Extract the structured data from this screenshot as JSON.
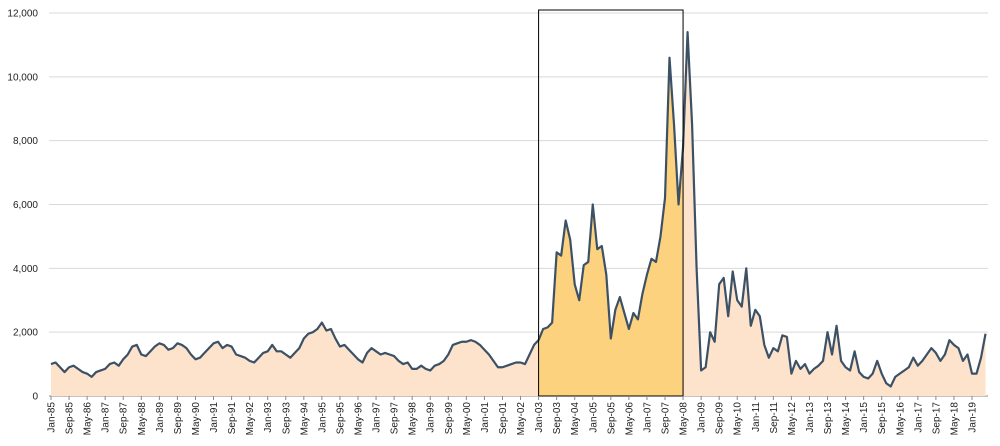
{
  "chart_data": {
    "type": "area",
    "categories": [
      "Jan-85",
      null,
      null,
      null,
      "Sep-85",
      null,
      null,
      null,
      "May-86",
      null,
      null,
      null,
      "Jan-87",
      null,
      null,
      null,
      "Sep-87",
      null,
      null,
      null,
      "May-88",
      null,
      null,
      null,
      "Jan-89",
      null,
      null,
      null,
      "Sep-89",
      null,
      null,
      null,
      "May-90",
      null,
      null,
      null,
      "Jan-91",
      null,
      null,
      null,
      "Sep-91",
      null,
      null,
      null,
      "May-92",
      null,
      null,
      null,
      "Jan-93",
      null,
      null,
      null,
      "Sep-93",
      null,
      null,
      null,
      "May-94",
      null,
      null,
      null,
      "Jan-95",
      null,
      null,
      null,
      "Sep-95",
      null,
      null,
      null,
      "May-96",
      null,
      null,
      null,
      "Jan-97",
      null,
      null,
      null,
      "Sep-97",
      null,
      null,
      null,
      "May-98",
      null,
      null,
      null,
      "Jan-99",
      null,
      null,
      null,
      "Sep-99",
      null,
      null,
      null,
      "May-00",
      null,
      null,
      null,
      "Jan-01",
      null,
      null,
      null,
      "Sep-01",
      null,
      null,
      null,
      "May-02",
      null,
      null,
      null,
      "Jan-03",
      null,
      null,
      null,
      "Sep-03",
      null,
      null,
      null,
      "May-04",
      null,
      null,
      null,
      "Jan-05",
      null,
      null,
      null,
      "Sep-05",
      null,
      null,
      null,
      "May-06",
      null,
      null,
      null,
      "Jan-07",
      null,
      null,
      null,
      "Sep-07",
      null,
      null,
      null,
      "May-08",
      null,
      null,
      null,
      "Jan-09",
      null,
      null,
      null,
      "Sep-09",
      null,
      null,
      null,
      "May-10",
      null,
      null,
      null,
      "Jan-11",
      null,
      null,
      null,
      "Sep-11",
      null,
      null,
      null,
      "May-12",
      null,
      null,
      null,
      "Jan-13",
      null,
      null,
      null,
      "Sep-13",
      null,
      null,
      null,
      "May-14",
      null,
      null,
      null,
      "Jan-15",
      null,
      null,
      null,
      "Sep-15",
      null,
      null,
      null,
      "May-16",
      null,
      null,
      null,
      "Jan-17",
      null,
      null,
      null,
      "Sep-17",
      null,
      null,
      null,
      "May-18",
      null,
      null,
      null,
      "Jan-19",
      null,
      null,
      null
    ],
    "values": [
      1000,
      1050,
      900,
      750,
      900,
      950,
      850,
      750,
      700,
      600,
      750,
      800,
      850,
      1000,
      1050,
      950,
      1150,
      1300,
      1550,
      1600,
      1300,
      1250,
      1400,
      1550,
      1650,
      1600,
      1450,
      1500,
      1650,
      1600,
      1500,
      1300,
      1150,
      1200,
      1350,
      1500,
      1650,
      1700,
      1500,
      1600,
      1550,
      1300,
      1250,
      1200,
      1100,
      1050,
      1200,
      1350,
      1400,
      1600,
      1400,
      1400,
      1300,
      1200,
      1350,
      1500,
      1800,
      1950,
      2000,
      2100,
      2300,
      2050,
      2100,
      1800,
      1550,
      1600,
      1450,
      1300,
      1150,
      1050,
      1350,
      1500,
      1400,
      1300,
      1350,
      1300,
      1250,
      1100,
      1000,
      1050,
      850,
      850,
      950,
      850,
      800,
      950,
      1000,
      1100,
      1300,
      1600,
      1650,
      1700,
      1700,
      1750,
      1700,
      1600,
      1450,
      1300,
      1100,
      900,
      900,
      950,
      1000,
      1050,
      1050,
      1000,
      1300,
      1600,
      1750,
      2100,
      2150,
      2300,
      4500,
      4400,
      5500,
      4900,
      3500,
      3000,
      4100,
      4200,
      6000,
      4600,
      4700,
      3800,
      1800,
      2700,
      3100,
      2600,
      2100,
      2600,
      2400,
      3200,
      3800,
      4300,
      4200,
      5000,
      6200,
      10600,
      8500,
      6000,
      7800,
      11400,
      8500,
      4000,
      800,
      900,
      2000,
      1700,
      3500,
      3700,
      2500,
      3900,
      3000,
      2800,
      4000,
      2200,
      2700,
      2500,
      1600,
      1200,
      1500,
      1400,
      1900,
      1850,
      700,
      1100,
      850,
      1000,
      700,
      850,
      950,
      1100,
      2000,
      1300,
      2200,
      1100,
      900,
      800,
      1400,
      750,
      600,
      550,
      700,
      1100,
      700,
      400,
      300,
      600,
      700,
      800,
      900,
      1200,
      950,
      1100,
      1300,
      1500,
      1350,
      1100,
      1300,
      1750,
      1600,
      1500,
      1100,
      1300,
      700,
      700,
      1200,
      1950
    ],
    "color": "#3d5166",
    "fill": "#fde3cb",
    "highlight_fill": "#fdd27e",
    "highlight": {
      "from": "Jan-03",
      "to": "May-08"
    },
    "ylim": [
      0,
      12000
    ],
    "yticks": [
      0,
      {
        "value": 2000,
        "label": "2,000"
      },
      {
        "value": 4000,
        "label": "4,000"
      },
      {
        "value": 6000,
        "label": "6,000"
      },
      {
        "value": 8000,
        "label": "8,000"
      },
      {
        "value": 10000,
        "label": "10,000"
      },
      {
        "value": 12000,
        "label": "12,000"
      }
    ],
    "grid": true
  }
}
